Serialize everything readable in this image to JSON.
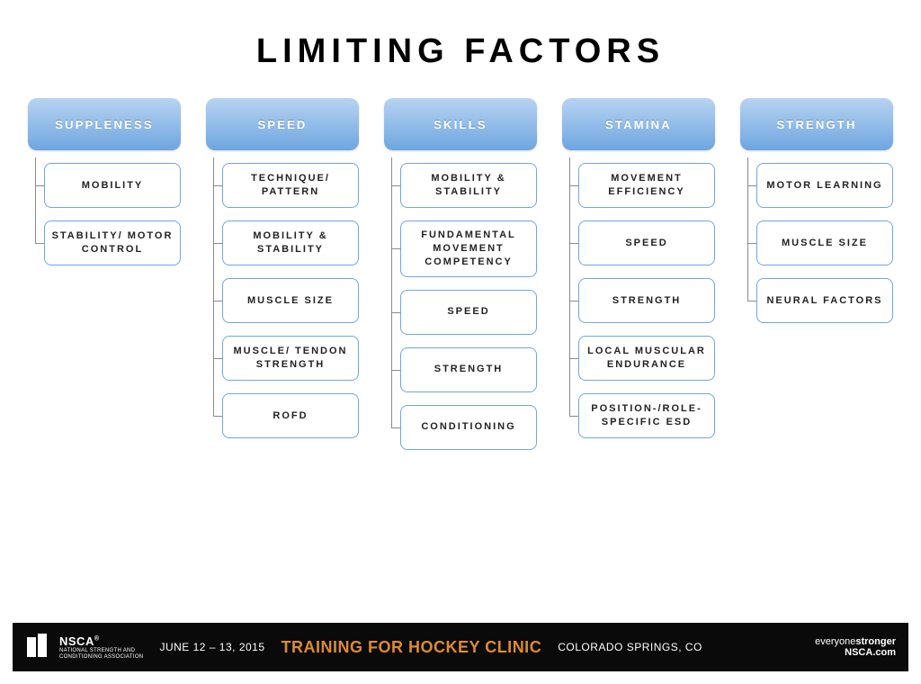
{
  "title": "Limiting Factors",
  "title_fontsize": 38,
  "title_letter_spacing": 6,
  "background_color": "#ffffff",
  "connector_color": "#8a8a8a",
  "header_box": {
    "height": 58,
    "border_radius": 10,
    "gradient_top": "#b8d3f2",
    "gradient_bottom": "#6ea6e0",
    "text_color": "#ffffff",
    "font_size": 13,
    "letter_spacing": 2.2
  },
  "item_box": {
    "border_color": "#6ea6e0",
    "border_radius": 8,
    "background": "#ffffff",
    "font_size": 11,
    "letter_spacing": 2,
    "text_color": "#222222",
    "min_height": 50
  },
  "columns": [
    {
      "header": "Suppleness",
      "items": [
        "Mobility",
        "Stability/ Motor Control"
      ]
    },
    {
      "header": "Speed",
      "items": [
        "Technique/ Pattern",
        "Mobility & Stability",
        "Muscle Size",
        "Muscle/ Tendon Strength",
        "ROFD"
      ]
    },
    {
      "header": "Skills",
      "items": [
        "Mobility & Stability",
        "Fundamental Movement Competency",
        "Speed",
        "Strength",
        "Conditioning"
      ]
    },
    {
      "header": "Stamina",
      "items": [
        "Movement Efficiency",
        "Speed",
        "Strength",
        "Local Muscular Endurance",
        "Position-/Role-Specific ESD"
      ]
    },
    {
      "header": "Strength",
      "items": [
        "Motor Learning",
        "Muscle Size",
        "Neural Factors"
      ]
    }
  ],
  "footer": {
    "background": "#0a0a0a",
    "org_name": "NSCA",
    "org_sub1": "NATIONAL STRENGTH AND",
    "org_sub2": "CONDITIONING ASSOCIATION",
    "date": "JUNE 12 – 13, 2015",
    "event": "TRAINING FOR HOCKEY CLINIC",
    "event_color": "#e08a2e",
    "location": "COLORADO SPRINGS, CO",
    "tag_light": "everyone",
    "tag_bold": "stronger",
    "url": "NSCA.com"
  }
}
